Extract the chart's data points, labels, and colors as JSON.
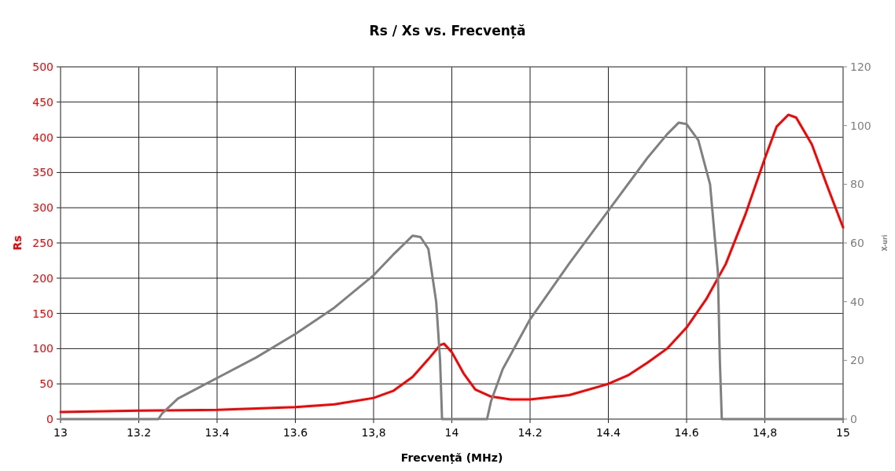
{
  "chart_data": {
    "type": "line",
    "title": "Rs / Xs vs. Frecvență",
    "xlabel": "Frecvență (MHz)",
    "ylabel": "Rs",
    "y2label": "X-uri",
    "xlim": [
      13,
      15
    ],
    "xticks": [
      13,
      13.2,
      13.4,
      13.6,
      {
        "value": 13.8,
        "label": "13,8"
      },
      14,
      14.2,
      14.4,
      14.6,
      {
        "value": 14.8,
        "label": "14,8"
      },
      15
    ],
    "ylim": [
      0,
      500
    ],
    "yticks": [
      0,
      50,
      100,
      150,
      200,
      250,
      300,
      350,
      400,
      450,
      500
    ],
    "y2lim": [
      0,
      120
    ],
    "y2ticks": [
      0,
      20,
      40,
      60,
      80,
      100,
      120
    ],
    "grid": true,
    "marker": "none",
    "line_style": "solid",
    "series": [
      {
        "color": "#ff0000",
        "x": [
          13.0,
          13.2,
          13.4,
          13.6,
          13.7,
          13.8,
          13.85,
          13.9,
          13.94,
          13.97,
          13.98,
          14.0,
          14.03,
          14.06,
          14.1,
          14.15,
          14.2,
          14.3,
          14.4,
          14.45,
          14.5,
          14.55,
          14.6,
          14.65,
          14.7,
          14.75,
          14.8,
          14.83,
          14.86,
          14.88,
          14.92,
          14.96,
          15.0
        ],
        "values": [
          10,
          12,
          13,
          17,
          21,
          30,
          40,
          60,
          85,
          105,
          107,
          95,
          65,
          42,
          32,
          28,
          28,
          34,
          50,
          62,
          80,
          100,
          130,
          170,
          220,
          290,
          370,
          415,
          432,
          428,
          390,
          330,
          272
        ]
      },
      {
        "color": "#808080",
        "axis": "y2",
        "x": [
          13.0,
          13.25,
          13.26,
          13.3,
          13.4,
          13.5,
          13.6,
          13.7,
          13.8,
          13.85,
          13.9,
          13.92,
          13.94,
          13.96,
          13.97,
          13.975,
          14.09,
          14.1,
          14.13,
          14.2,
          14.3,
          14.4,
          14.5,
          14.55,
          14.58,
          14.6,
          14.63,
          14.66,
          14.68,
          14.685,
          14.69,
          15.0
        ],
        "values": [
          0,
          0,
          2,
          7,
          14,
          21,
          29,
          38,
          49,
          56,
          62.5,
          62,
          58,
          40,
          20,
          0,
          0,
          6,
          17,
          34,
          53,
          71,
          89,
          97,
          101,
          100.5,
          95,
          80,
          50,
          20,
          0,
          0
        ]
      }
    ]
  }
}
